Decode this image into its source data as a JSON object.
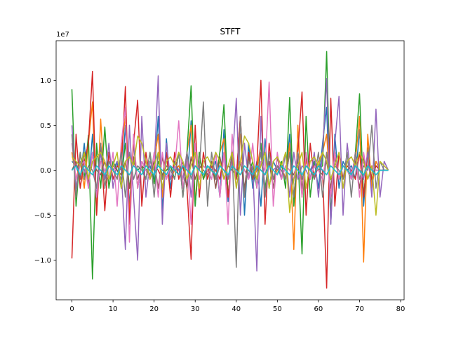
{
  "chart_data": {
    "type": "line",
    "title": "STFT",
    "xlabel": "",
    "ylabel": "",
    "y_offset_label": "1e7",
    "xlim": [
      -3.85,
      80.85
    ],
    "ylim": [
      -1.44,
      1.44
    ],
    "y_scale_factor": 10000000,
    "x_ticks": [
      0,
      10,
      20,
      30,
      40,
      50,
      60,
      70,
      80
    ],
    "x_tick_labels": [
      "0",
      "10",
      "20",
      "30",
      "40",
      "50",
      "60",
      "70",
      "80"
    ],
    "y_ticks": [
      -1.0,
      -0.5,
      0.0,
      0.5,
      1.0
    ],
    "y_tick_labels": [
      "−1.0",
      "−0.5",
      "0.0",
      "0.5",
      "1.0"
    ],
    "grid": false,
    "legend": "none",
    "x": [
      0,
      1,
      2,
      3,
      4,
      5,
      6,
      7,
      8,
      9,
      10,
      11,
      12,
      13,
      14,
      15,
      16,
      17,
      18,
      19,
      20,
      21,
      22,
      23,
      24,
      25,
      26,
      27,
      28,
      29,
      30,
      31,
      32,
      33,
      34,
      35,
      36,
      37,
      38,
      39,
      40,
      41,
      42,
      43,
      44,
      45,
      46,
      47,
      48,
      49,
      50,
      51,
      52,
      53,
      54,
      55,
      56,
      57,
      58,
      59,
      60,
      61,
      62,
      63,
      64,
      65,
      66,
      67,
      68,
      69,
      70,
      71,
      72,
      73,
      74,
      75,
      76,
      77
    ],
    "colors": [
      "#1f77b4",
      "#ff7f0e",
      "#2ca02c",
      "#d62728",
      "#9467bd",
      "#8c564b",
      "#e377c2",
      "#7f7f7f",
      "#bcbd22",
      "#17becf"
    ],
    "series": [
      {
        "values": [
          0.1,
          0.05,
          -0.1,
          0.3,
          -0.2,
          0.4,
          -0.3,
          0.2,
          -0.1,
          0.05,
          0.0,
          0.1,
          -0.2,
          0.5,
          -0.4,
          0.3,
          -0.2,
          0.1,
          0.0,
          0.05,
          -0.1,
          0.6,
          -0.45,
          0.35,
          -0.2,
          0.1,
          0.0,
          0.05,
          -0.2,
          0.55,
          -0.4,
          0.2,
          -0.1,
          0.05,
          0.0,
          0.1,
          -0.3,
          0.45,
          -0.35,
          0.2,
          -0.1,
          0.6,
          -0.5,
          0.3,
          -0.2,
          0.1,
          -0.4,
          0.35,
          -0.2,
          0.1,
          0.0,
          0.05,
          -0.1,
          0.4,
          -0.35,
          0.2,
          -0.1,
          0.05,
          0.0,
          0.1,
          -0.2,
          0.3,
          0.7,
          -0.6,
          0.4,
          -0.2,
          0.1,
          0.0,
          0.05,
          -0.1,
          0.45,
          -0.4,
          0.25,
          -0.15,
          0.1,
          0.0,
          0.0,
          0.0
        ]
      },
      {
        "values": [
          0.2,
          -0.1,
          0.1,
          -0.2,
          0.3,
          0.76,
          -0.5,
          0.57,
          -0.2,
          0.1,
          0.0,
          -0.1,
          0.2,
          0.6,
          -0.5,
          0.4,
          -0.2,
          0.1,
          0.0,
          -0.05,
          0.1,
          0.4,
          -0.3,
          0.2,
          -0.1,
          0.0,
          0.05,
          -0.1,
          0.2,
          0.5,
          -0.35,
          0.2,
          -0.1,
          0.0,
          0.05,
          -0.1,
          0.2,
          0.35,
          -0.3,
          0.2,
          -0.1,
          0.4,
          -0.3,
          0.2,
          -0.1,
          0.0,
          0.3,
          -0.25,
          0.2,
          -0.1,
          0.0,
          0.05,
          -0.1,
          0.3,
          -0.88,
          0.5,
          -0.3,
          0.1,
          0.0,
          -0.05,
          0.1,
          0.2,
          0.4,
          -0.3,
          0.2,
          -0.1,
          0.05,
          0.0,
          -0.05,
          0.1,
          0.6,
          -1.02,
          0.4,
          -0.2,
          0.1,
          0.0,
          0.0,
          0.0
        ]
      },
      {
        "values": [
          0.9,
          -0.4,
          0.2,
          -0.1,
          0.39,
          -1.21,
          0.3,
          -0.2,
          0.48,
          -0.2,
          0.1,
          0.0,
          -0.1,
          0.3,
          -0.2,
          0.1,
          0.0,
          0.05,
          -0.1,
          0.2,
          -0.15,
          0.1,
          -0.05,
          0.0,
          0.05,
          -0.1,
          0.2,
          -0.3,
          0.2,
          0.94,
          -0.4,
          0.2,
          -0.1,
          0.05,
          0.0,
          -0.1,
          0.2,
          0.73,
          -0.3,
          0.2,
          -0.1,
          0.1,
          0.0,
          -0.05,
          0.1,
          -0.2,
          0.3,
          -0.2,
          0.1,
          0.0,
          -0.05,
          0.1,
          -0.2,
          0.81,
          -0.4,
          0.2,
          -0.93,
          0.6,
          -0.3,
          0.1,
          0.0,
          0.05,
          1.32,
          -0.5,
          0.2,
          -0.1,
          0.05,
          0.0,
          -0.1,
          0.2,
          0.85,
          -0.3,
          0.2,
          -0.1,
          0.05,
          0.0,
          0.0,
          0.0
        ]
      },
      {
        "values": [
          -0.98,
          0.4,
          -0.2,
          0.1,
          0.3,
          1.1,
          -0.5,
          0.3,
          -0.45,
          0.2,
          -0.1,
          0.05,
          0.0,
          0.93,
          -0.6,
          0.3,
          0.78,
          -0.4,
          0.2,
          -0.1,
          0.05,
          0.0,
          -0.1,
          0.2,
          -0.3,
          0.2,
          -0.1,
          0.05,
          -0.2,
          -0.99,
          0.5,
          -0.3,
          0.2,
          -0.1,
          0.05,
          0.0,
          -0.1,
          0.2,
          -0.3,
          0.2,
          -0.1,
          0.6,
          -0.3,
          0.2,
          -0.1,
          0.05,
          1.0,
          -0.6,
          0.3,
          -0.1,
          0.05,
          0.0,
          -0.1,
          0.2,
          -0.3,
          0.2,
          0.87,
          -0.5,
          0.3,
          -0.1,
          0.05,
          0.0,
          -1.31,
          0.8,
          -0.4,
          0.2,
          -0.1,
          0.05,
          0.0,
          -0.1,
          0.2,
          -0.3,
          0.2,
          -0.1,
          0.05,
          0.0,
          0.0,
          0.0
        ]
      },
      {
        "values": [
          0.5,
          -0.2,
          0.1,
          0.0,
          -0.1,
          0.2,
          -0.3,
          0.2,
          -0.1,
          0.3,
          -0.2,
          0.1,
          0.0,
          -0.88,
          0.5,
          -0.3,
          -1.0,
          0.6,
          -0.3,
          0.1,
          0.0,
          1.05,
          -0.6,
          0.3,
          -0.1,
          0.05,
          0.0,
          -0.1,
          0.2,
          -0.3,
          0.2,
          -0.1,
          0.05,
          0.0,
          -0.1,
          0.2,
          -0.3,
          0.2,
          -0.1,
          0.05,
          0.8,
          -0.5,
          0.3,
          -0.1,
          0.05,
          -1.12,
          0.6,
          -0.3,
          0.1,
          0.0,
          0.05,
          -0.1,
          0.2,
          -0.3,
          0.2,
          -0.1,
          0.05,
          0.0,
          -0.1,
          0.2,
          -0.3,
          0.2,
          1.02,
          -0.6,
          0.3,
          0.82,
          -0.5,
          0.3,
          -0.1,
          0.05,
          0.0,
          -0.1,
          0.2,
          -0.3,
          0.68,
          -0.3,
          0.1,
          0.0
        ]
      },
      {
        "values": [
          0.0,
          0.1,
          -0.1,
          0.2,
          -0.15,
          0.1,
          0.0,
          -0.05,
          0.1,
          -0.1,
          0.05,
          0.0,
          -0.05,
          0.1,
          -0.2,
          0.15,
          -0.1,
          0.05,
          0.0,
          -0.05,
          0.1,
          -0.2,
          0.15,
          -0.1,
          0.05,
          0.0,
          -0.05,
          0.1,
          -0.2,
          0.15,
          -0.1,
          0.05,
          0.0,
          -0.05,
          0.1,
          -0.2,
          0.15,
          -0.1,
          0.05,
          0.0,
          -0.05,
          0.1,
          -0.2,
          0.15,
          -0.1,
          0.05,
          0.0,
          -0.05,
          0.1,
          -0.2,
          0.15,
          -0.1,
          0.05,
          0.0,
          -0.05,
          0.1,
          -0.2,
          0.15,
          -0.1,
          0.05,
          0.0,
          -0.05,
          0.1,
          -0.2,
          0.15,
          -0.1,
          0.05,
          0.0,
          -0.05,
          0.1,
          -0.2,
          0.15,
          -0.1,
          0.05,
          0.0,
          0.0,
          0.0,
          0.0
        ]
      },
      {
        "values": [
          0.3,
          -0.1,
          0.05,
          0.1,
          -0.2,
          0.2,
          -0.3,
          0.1,
          0.0,
          -0.1,
          0.2,
          -0.4,
          0.3,
          0.7,
          -0.8,
          0.4,
          -0.2,
          0.1,
          0.0,
          -0.1,
          0.2,
          -0.3,
          0.2,
          -0.1,
          0.05,
          0.0,
          0.55,
          -0.2,
          0.1,
          -0.6,
          0.3,
          -0.1,
          0.05,
          0.0,
          -0.1,
          0.2,
          -0.3,
          0.2,
          -0.6,
          0.4,
          -0.2,
          0.1,
          0.0,
          -0.1,
          0.3,
          -0.2,
          0.1,
          0.0,
          0.98,
          -0.4,
          0.2,
          -0.1,
          0.05,
          0.0,
          -0.1,
          0.2,
          -0.3,
          0.2,
          -0.1,
          0.05,
          0.0,
          -0.1,
          0.2,
          -0.3,
          0.2,
          -0.1,
          0.05,
          0.0,
          -0.1,
          0.2,
          -0.3,
          0.2,
          -0.1,
          0.05,
          0.0,
          0.0,
          0.0,
          0.0
        ]
      },
      {
        "values": [
          0.4,
          -0.3,
          0.2,
          -0.1,
          0.05,
          0.0,
          -0.2,
          0.3,
          -0.2,
          0.1,
          0.0,
          -0.1,
          0.2,
          -0.3,
          0.2,
          -0.1,
          0.05,
          0.0,
          -0.1,
          0.2,
          -0.3,
          0.2,
          -0.1,
          0.05,
          0.0,
          -0.1,
          0.2,
          -0.3,
          0.2,
          -0.1,
          0.05,
          0.0,
          0.76,
          -0.4,
          0.2,
          -0.1,
          0.05,
          0.0,
          -0.1,
          0.2,
          -1.08,
          0.6,
          -0.3,
          0.1,
          0.0,
          -0.1,
          0.2,
          -0.3,
          0.2,
          -0.1,
          0.05,
          0.0,
          -0.1,
          0.2,
          -0.3,
          0.2,
          -0.1,
          0.05,
          0.0,
          -0.1,
          0.2,
          -0.3,
          0.2,
          -0.1,
          0.05,
          0.0,
          -0.1,
          0.2,
          -0.3,
          0.2,
          -0.1,
          0.05,
          0.0,
          0.5,
          -0.2,
          0.1,
          0.0,
          0.0
        ]
      },
      {
        "values": [
          0.15,
          0.1,
          0.05,
          0.2,
          -0.1,
          0.1,
          0.15,
          0.2,
          0.1,
          -0.1,
          0.05,
          0.2,
          -0.2,
          0.1,
          0.15,
          0.05,
          0.38,
          0.3,
          0.1,
          -0.1,
          0.05,
          0.2,
          -0.2,
          0.1,
          0.15,
          0.05,
          0.2,
          0.1,
          -0.1,
          0.05,
          0.2,
          -0.2,
          0.1,
          0.15,
          0.05,
          0.2,
          0.1,
          -0.1,
          0.05,
          0.2,
          -0.2,
          0.1,
          0.38,
          0.3,
          0.1,
          -0.1,
          0.05,
          0.2,
          -0.2,
          0.1,
          0.15,
          0.05,
          0.2,
          -0.47,
          -0.1,
          0.05,
          0.2,
          -0.2,
          0.1,
          0.15,
          0.05,
          0.2,
          0.1,
          -0.1,
          0.05,
          0.2,
          -0.2,
          0.1,
          0.15,
          0.05,
          0.2,
          0.1,
          -0.1,
          0.05,
          -0.5,
          0.1,
          0.05,
          0.0
        ]
      },
      {
        "values": [
          0.0,
          0.05,
          -0.05,
          0.05,
          0.0,
          -0.05,
          0.05,
          0.0,
          -0.05,
          0.05,
          0.0,
          -0.05,
          0.05,
          0.0,
          -0.05,
          0.05,
          0.0,
          -0.05,
          0.05,
          0.0,
          -0.05,
          0.05,
          0.0,
          -0.05,
          0.05,
          0.0,
          -0.05,
          0.05,
          0.0,
          -0.05,
          0.05,
          0.0,
          -0.05,
          0.05,
          0.0,
          -0.05,
          0.05,
          0.0,
          -0.05,
          0.05,
          0.0,
          -0.05,
          0.05,
          0.0,
          -0.05,
          0.05,
          0.0,
          -0.05,
          0.05,
          0.0,
          -0.05,
          0.05,
          0.0,
          -0.05,
          0.05,
          0.0,
          -0.05,
          0.05,
          0.0,
          -0.05,
          0.05,
          0.0,
          -0.05,
          0.05,
          0.0,
          -0.05,
          0.05,
          0.0,
          -0.05,
          0.05,
          0.0,
          -0.05,
          0.05,
          0.0,
          -0.05,
          0.0,
          0.0,
          0.0
        ]
      }
    ]
  }
}
